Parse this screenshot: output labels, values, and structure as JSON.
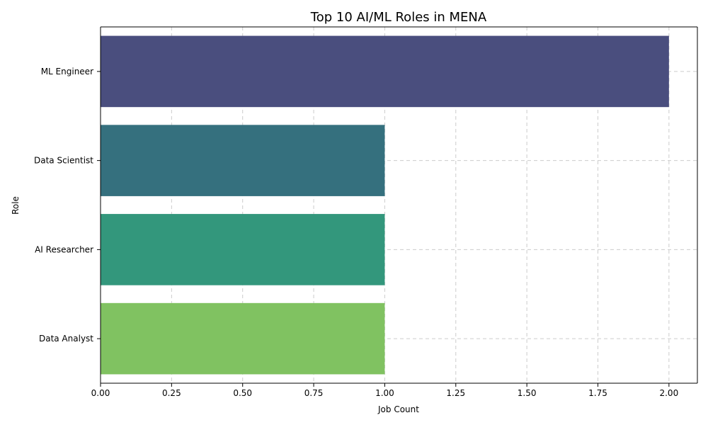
{
  "chart_data": {
    "type": "bar",
    "orientation": "horizontal",
    "title": "Top 10 AI/ML Roles in MENA",
    "xlabel": "Job Count",
    "ylabel": "Role",
    "categories": [
      "ML Engineer",
      "Data Scientist",
      "AI Researcher",
      "Data Analyst"
    ],
    "values": [
      2,
      1,
      1,
      1
    ],
    "colors": [
      "#4a4e7e",
      "#35707e",
      "#33977c",
      "#80c261"
    ],
    "xlim": [
      0,
      2.1
    ],
    "xticks": [
      0.0,
      0.25,
      0.5,
      0.75,
      1.0,
      1.25,
      1.5,
      1.75,
      2.0
    ],
    "xtick_labels": [
      "0.00",
      "0.25",
      "0.50",
      "0.75",
      "1.00",
      "1.25",
      "1.50",
      "1.75",
      "2.00"
    ],
    "grid": true,
    "grid_style": "dashed"
  }
}
